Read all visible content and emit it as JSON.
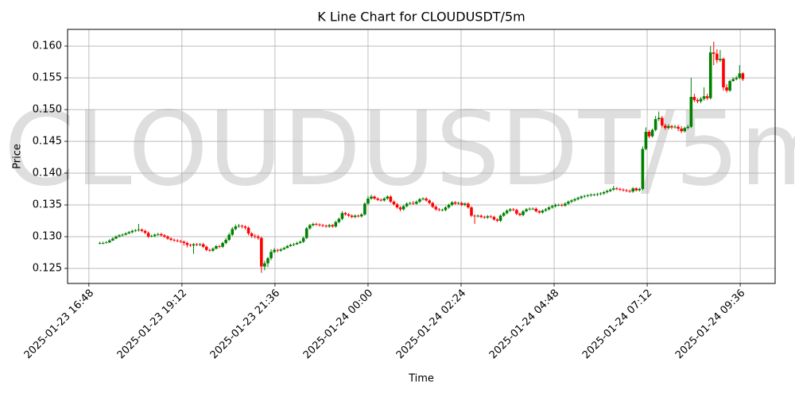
{
  "chart_data": {
    "type": "candlestick",
    "title": "K Line Chart for CLOUDUSDT/5m",
    "watermark": "CLOUDUSDT/5m",
    "x_label": "Time",
    "y_label": "Price",
    "up_color": "green",
    "down_color": "red",
    "grid": true,
    "xlim": [
      "2025-01-23 16:15",
      "2025-01-24 10:30"
    ],
    "xticks": [
      "2025-01-23 16:48",
      "2025-01-23 19:12",
      "2025-01-23 21:36",
      "2025-01-24 00:00",
      "2025-01-24 02:24",
      "2025-01-24 04:48",
      "2025-01-24 07:12",
      "2025-01-24 09:36"
    ],
    "ylim": [
      0.12263,
      0.16263
    ],
    "yticks": [
      0.125,
      {
        "value": 0.13,
        "label": "0.130"
      },
      0.135,
      {
        "value": 0.14,
        "label": "0.140"
      },
      0.145,
      {
        "value": 0.15,
        "label": "0.150"
      },
      0.155,
      {
        "value": 0.16,
        "label": "0.160"
      }
    ],
    "x": [
      "2025-01-23 17:05",
      "2025-01-23 17:10",
      "2025-01-23 17:15",
      "2025-01-23 17:20",
      "2025-01-23 17:25",
      "2025-01-23 17:30",
      "2025-01-23 17:35",
      "2025-01-23 17:40",
      "2025-01-23 17:45",
      "2025-01-23 17:50",
      "2025-01-23 17:55",
      "2025-01-23 18:00",
      "2025-01-23 18:05",
      "2025-01-23 18:10",
      "2025-01-23 18:15",
      "2025-01-23 18:20",
      "2025-01-23 18:25",
      "2025-01-23 18:30",
      "2025-01-23 18:35",
      "2025-01-23 18:40",
      "2025-01-23 18:45",
      "2025-01-23 18:50",
      "2025-01-23 18:55",
      "2025-01-23 19:00",
      "2025-01-23 19:05",
      "2025-01-23 19:10",
      "2025-01-23 19:15",
      "2025-01-23 19:20",
      "2025-01-23 19:25",
      "2025-01-23 19:30",
      "2025-01-23 19:35",
      "2025-01-23 19:40",
      "2025-01-23 19:45",
      "2025-01-23 19:50",
      "2025-01-23 19:55",
      "2025-01-23 20:00",
      "2025-01-23 20:05",
      "2025-01-23 20:10",
      "2025-01-23 20:15",
      "2025-01-23 20:20",
      "2025-01-23 20:25",
      "2025-01-23 20:30",
      "2025-01-23 20:35",
      "2025-01-23 20:40",
      "2025-01-23 20:45",
      "2025-01-23 20:50",
      "2025-01-23 20:55",
      "2025-01-23 21:00",
      "2025-01-23 21:05",
      "2025-01-23 21:10",
      "2025-01-23 21:15",
      "2025-01-23 21:20",
      "2025-01-23 21:25",
      "2025-01-23 21:30",
      "2025-01-23 21:35",
      "2025-01-23 21:40",
      "2025-01-23 21:45",
      "2025-01-23 21:50",
      "2025-01-23 21:55",
      "2025-01-23 22:00",
      "2025-01-23 22:05",
      "2025-01-23 22:10",
      "2025-01-23 22:15",
      "2025-01-23 22:20",
      "2025-01-23 22:25",
      "2025-01-23 22:30",
      "2025-01-23 22:35",
      "2025-01-23 22:40",
      "2025-01-23 22:45",
      "2025-01-23 22:50",
      "2025-01-23 22:55",
      "2025-01-23 23:00",
      "2025-01-23 23:05",
      "2025-01-23 23:10",
      "2025-01-23 23:15",
      "2025-01-23 23:20",
      "2025-01-23 23:25",
      "2025-01-23 23:30",
      "2025-01-23 23:35",
      "2025-01-23 23:40",
      "2025-01-23 23:45",
      "2025-01-23 23:50",
      "2025-01-23 23:55",
      "2025-01-24 00:00",
      "2025-01-24 00:05",
      "2025-01-24 00:10",
      "2025-01-24 00:15",
      "2025-01-24 00:20",
      "2025-01-24 00:25",
      "2025-01-24 00:30",
      "2025-01-24 00:35",
      "2025-01-24 00:40",
      "2025-01-24 00:45",
      "2025-01-24 00:50",
      "2025-01-24 00:55",
      "2025-01-24 01:00",
      "2025-01-24 01:05",
      "2025-01-24 01:10",
      "2025-01-24 01:15",
      "2025-01-24 01:20",
      "2025-01-24 01:25",
      "2025-01-24 01:30",
      "2025-01-24 01:35",
      "2025-01-24 01:40",
      "2025-01-24 01:45",
      "2025-01-24 01:50",
      "2025-01-24 01:55",
      "2025-01-24 02:00",
      "2025-01-24 02:05",
      "2025-01-24 02:10",
      "2025-01-24 02:15",
      "2025-01-24 02:20",
      "2025-01-24 02:25",
      "2025-01-24 02:30",
      "2025-01-24 02:35",
      "2025-01-24 02:40",
      "2025-01-24 02:45",
      "2025-01-24 02:50",
      "2025-01-24 02:55",
      "2025-01-24 03:00",
      "2025-01-24 03:05",
      "2025-01-24 03:10",
      "2025-01-24 03:15",
      "2025-01-24 03:20",
      "2025-01-24 03:25",
      "2025-01-24 03:30",
      "2025-01-24 03:35",
      "2025-01-24 03:40",
      "2025-01-24 03:45",
      "2025-01-24 03:50",
      "2025-01-24 03:55",
      "2025-01-24 04:00",
      "2025-01-24 04:05",
      "2025-01-24 04:10",
      "2025-01-24 04:15",
      "2025-01-24 04:20",
      "2025-01-24 04:25",
      "2025-01-24 04:30",
      "2025-01-24 04:35",
      "2025-01-24 04:40",
      "2025-01-24 04:45",
      "2025-01-24 04:50",
      "2025-01-24 04:55",
      "2025-01-24 05:00",
      "2025-01-24 05:05",
      "2025-01-24 05:10",
      "2025-01-24 05:15",
      "2025-01-24 05:20",
      "2025-01-24 05:25",
      "2025-01-24 05:30",
      "2025-01-24 05:35",
      "2025-01-24 05:40",
      "2025-01-24 05:45",
      "2025-01-24 05:50",
      "2025-01-24 05:55",
      "2025-01-24 06:00",
      "2025-01-24 06:05",
      "2025-01-24 06:10",
      "2025-01-24 06:15",
      "2025-01-24 06:20",
      "2025-01-24 06:25",
      "2025-01-24 06:30",
      "2025-01-24 06:35",
      "2025-01-24 06:40",
      "2025-01-24 06:45",
      "2025-01-24 06:50",
      "2025-01-24 06:55",
      "2025-01-24 07:00",
      "2025-01-24 07:05",
      "2025-01-24 07:10",
      "2025-01-24 07:15",
      "2025-01-24 07:20",
      "2025-01-24 07:25",
      "2025-01-24 07:30",
      "2025-01-24 07:35",
      "2025-01-24 07:40",
      "2025-01-24 07:45",
      "2025-01-24 07:50",
      "2025-01-24 07:55",
      "2025-01-24 08:00",
      "2025-01-24 08:05",
      "2025-01-24 08:10",
      "2025-01-24 08:15",
      "2025-01-24 08:20",
      "2025-01-24 08:25",
      "2025-01-24 08:30",
      "2025-01-24 08:35",
      "2025-01-24 08:40",
      "2025-01-24 08:45",
      "2025-01-24 08:50",
      "2025-01-24 08:55",
      "2025-01-24 09:00",
      "2025-01-24 09:05",
      "2025-01-24 09:10",
      "2025-01-24 09:15",
      "2025-01-24 09:20",
      "2025-01-24 09:25",
      "2025-01-24 09:30",
      "2025-01-24 09:35",
      "2025-01-24 09:40"
    ],
    "open": [
      0.1289,
      0.129,
      0.129,
      0.1291,
      0.1294,
      0.1297,
      0.13,
      0.1302,
      0.1303,
      0.1305,
      0.1307,
      0.1309,
      0.131,
      0.1311,
      0.1309,
      0.1306,
      0.13,
      0.1301,
      0.1303,
      0.1304,
      0.1302,
      0.13,
      0.1297,
      0.1295,
      0.1294,
      0.1293,
      0.1292,
      0.129,
      0.1287,
      0.1286,
      0.1288,
      0.1287,
      0.1288,
      0.1284,
      0.1279,
      0.1278,
      0.1281,
      0.1285,
      0.1284,
      0.129,
      0.1295,
      0.1303,
      0.1312,
      0.1316,
      0.1317,
      0.1316,
      0.1314,
      0.1305,
      0.1301,
      0.13,
      0.1298,
      0.1253,
      0.1258,
      0.1266,
      0.1276,
      0.1279,
      0.1278,
      0.128,
      0.1282,
      0.1285,
      0.1287,
      0.1288,
      0.129,
      0.1292,
      0.1298,
      0.1313,
      0.1318,
      0.132,
      0.1319,
      0.1318,
      0.1317,
      0.1316,
      0.1318,
      0.1316,
      0.1323,
      0.1328,
      0.1337,
      0.1335,
      0.1333,
      0.1331,
      0.1333,
      0.1332,
      0.1335,
      0.1352,
      0.136,
      0.1363,
      0.136,
      0.1358,
      0.1357,
      0.136,
      0.1363,
      0.1355,
      0.1351,
      0.1346,
      0.1343,
      0.1348,
      0.1352,
      0.1353,
      0.1352,
      0.1355,
      0.1359,
      0.136,
      0.1357,
      0.1353,
      0.1347,
      0.1343,
      0.1342,
      0.1342,
      0.1346,
      0.135,
      0.1354,
      0.1352,
      0.1353,
      0.135,
      0.1352,
      0.1346,
      0.1333,
      0.1332,
      0.1333,
      0.1331,
      0.133,
      0.1332,
      0.1331,
      0.1327,
      0.1325,
      0.1333,
      0.1337,
      0.1341,
      0.1343,
      0.1342,
      0.1336,
      0.1334,
      0.134,
      0.1343,
      0.1344,
      0.1344,
      0.134,
      0.1338,
      0.1341,
      0.1343,
      0.1346,
      0.1348,
      0.135,
      0.135,
      0.1349,
      0.1352,
      0.1355,
      0.1357,
      0.1359,
      0.1361,
      0.1363,
      0.1364,
      0.1365,
      0.1366,
      0.1366,
      0.1367,
      0.1368,
      0.137,
      0.1372,
      0.1374,
      0.1376,
      0.1375,
      0.1374,
      0.1373,
      0.1372,
      0.1371,
      0.1376,
      0.1373,
      0.1375,
      0.1438,
      0.1465,
      0.1458,
      0.1468,
      0.1485,
      0.1487,
      0.1475,
      0.1471,
      0.1474,
      0.1472,
      0.1473,
      0.147,
      0.1466,
      0.1471,
      0.1473,
      0.152,
      0.1515,
      0.1513,
      0.1517,
      0.1521,
      0.1518,
      0.159,
      0.1588,
      0.1578,
      0.158,
      0.1535,
      0.153,
      0.1545,
      0.1548,
      0.155,
      0.1557
    ],
    "high": [
      0.1292,
      0.1292,
      0.1293,
      0.1296,
      0.1299,
      0.1302,
      0.1304,
      0.1305,
      0.1307,
      0.1309,
      0.1311,
      0.1312,
      0.132,
      0.1313,
      0.1311,
      0.1308,
      0.1303,
      0.1305,
      0.1306,
      0.1306,
      0.1304,
      0.1302,
      0.1299,
      0.1297,
      0.1296,
      0.1295,
      0.1294,
      0.1292,
      0.1289,
      0.129,
      0.129,
      0.129,
      0.129,
      0.1286,
      0.1281,
      0.1283,
      0.1287,
      0.1287,
      0.1292,
      0.1298,
      0.1306,
      0.1315,
      0.1319,
      0.132,
      0.1319,
      0.1318,
      0.1316,
      0.1307,
      0.1304,
      0.1303,
      0.13,
      0.1262,
      0.1268,
      0.128,
      0.1282,
      0.1281,
      0.1282,
      0.1284,
      0.1287,
      0.1289,
      0.129,
      0.1292,
      0.1294,
      0.13,
      0.1315,
      0.132,
      0.1322,
      0.1322,
      0.1321,
      0.132,
      0.1319,
      0.132,
      0.132,
      0.1325,
      0.133,
      0.134,
      0.1339,
      0.1337,
      0.1335,
      0.1335,
      0.1335,
      0.1337,
      0.1354,
      0.1364,
      0.1366,
      0.1365,
      0.1362,
      0.136,
      0.1362,
      0.1365,
      0.1365,
      0.1357,
      0.1353,
      0.1348,
      0.135,
      0.1354,
      0.1355,
      0.1356,
      0.1357,
      0.1361,
      0.1362,
      0.1362,
      0.1359,
      0.1355,
      0.1349,
      0.1345,
      0.1344,
      0.1348,
      0.1352,
      0.1356,
      0.1356,
      0.1355,
      0.1355,
      0.1354,
      0.1354,
      0.1348,
      0.1335,
      0.1335,
      0.1335,
      0.1333,
      0.1334,
      0.1334,
      0.1333,
      0.1329,
      0.1335,
      0.1339,
      0.1343,
      0.1345,
      0.1345,
      0.1344,
      0.1338,
      0.1342,
      0.1345,
      0.1346,
      0.1346,
      0.1346,
      0.1342,
      0.1343,
      0.1345,
      0.1348,
      0.135,
      0.1352,
      0.1352,
      0.1352,
      0.1354,
      0.1357,
      0.1359,
      0.1361,
      0.1363,
      0.1365,
      0.1366,
      0.1367,
      0.1368,
      0.1368,
      0.1369,
      0.137,
      0.1372,
      0.1374,
      0.1376,
      0.138,
      0.1378,
      0.1377,
      0.1376,
      0.1375,
      0.1374,
      0.1378,
      0.1378,
      0.1377,
      0.1442,
      0.1472,
      0.1468,
      0.147,
      0.149,
      0.1497,
      0.149,
      0.1478,
      0.1477,
      0.1476,
      0.1476,
      0.1476,
      0.1474,
      0.1473,
      0.1476,
      0.155,
      0.1525,
      0.1518,
      0.152,
      0.1535,
      0.1525,
      0.16,
      0.1607,
      0.1595,
      0.1594,
      0.1582,
      0.154,
      0.1547,
      0.1551,
      0.1553,
      0.157,
      0.1559
    ],
    "low": [
      0.1288,
      0.1288,
      0.1289,
      0.129,
      0.1293,
      0.1296,
      0.1299,
      0.13,
      0.1302,
      0.1304,
      0.1305,
      0.1307,
      0.1308,
      0.1307,
      0.1304,
      0.1298,
      0.1299,
      0.1299,
      0.1301,
      0.13,
      0.1298,
      0.1295,
      0.1293,
      0.1292,
      0.1291,
      0.129,
      0.1286,
      0.1283,
      0.1284,
      0.1273,
      0.1285,
      0.1285,
      0.1282,
      0.1277,
      0.1276,
      0.1276,
      0.128,
      0.1282,
      0.1282,
      0.1288,
      0.1293,
      0.1301,
      0.131,
      0.1314,
      0.1313,
      0.1311,
      0.1302,
      0.1298,
      0.1297,
      0.1295,
      0.1243,
      0.1247,
      0.1252,
      0.1263,
      0.1274,
      0.1275,
      0.1276,
      0.1279,
      0.1282,
      0.1284,
      0.1285,
      0.1287,
      0.1289,
      0.129,
      0.1296,
      0.1311,
      0.1316,
      0.1317,
      0.1316,
      0.1315,
      0.1314,
      0.1314,
      0.1314,
      0.1314,
      0.1321,
      0.1326,
      0.1333,
      0.1331,
      0.1329,
      0.1329,
      0.133,
      0.133,
      0.1333,
      0.135,
      0.1358,
      0.1358,
      0.1356,
      0.1355,
      0.1355,
      0.1358,
      0.1353,
      0.1349,
      0.1344,
      0.134,
      0.1341,
      0.1346,
      0.135,
      0.135,
      0.135,
      0.1353,
      0.1357,
      0.1355,
      0.1351,
      0.1345,
      0.1341,
      0.134,
      0.134,
      0.134,
      0.1344,
      0.1348,
      0.135,
      0.135,
      0.1348,
      0.1348,
      0.1344,
      0.1331,
      0.132,
      0.133,
      0.1329,
      0.1328,
      0.1328,
      0.1329,
      0.1325,
      0.1323,
      0.1323,
      0.1331,
      0.1335,
      0.1339,
      0.134,
      0.1334,
      0.1332,
      0.1332,
      0.1338,
      0.1341,
      0.1342,
      0.1338,
      0.1336,
      0.1336,
      0.1339,
      0.1341,
      0.1344,
      0.1346,
      0.1348,
      0.1347,
      0.1347,
      0.135,
      0.1353,
      0.1355,
      0.1357,
      0.1359,
      0.1361,
      0.1362,
      0.1363,
      0.1364,
      0.1364,
      0.1365,
      0.1366,
      0.1368,
      0.137,
      0.1372,
      0.1373,
      0.1372,
      0.1371,
      0.137,
      0.1369,
      0.1369,
      0.1371,
      0.1371,
      0.1373,
      0.1436,
      0.1455,
      0.1456,
      0.1466,
      0.1482,
      0.1472,
      0.1468,
      0.1469,
      0.1469,
      0.147,
      0.1466,
      0.1463,
      0.1464,
      0.1469,
      0.1471,
      0.1512,
      0.151,
      0.151,
      0.1514,
      0.1515,
      0.1516,
      0.157,
      0.1573,
      0.1575,
      0.153,
      0.1527,
      0.1528,
      0.1544,
      0.1546,
      0.1548,
      0.1545
    ],
    "close": [
      0.129,
      0.129,
      0.1291,
      0.1294,
      0.1297,
      0.13,
      0.1302,
      0.1303,
      0.1305,
      0.1307,
      0.1309,
      0.131,
      0.1311,
      0.1309,
      0.1306,
      0.13,
      0.1301,
      0.1303,
      0.1304,
      0.1302,
      0.13,
      0.1297,
      0.1295,
      0.1294,
      0.1293,
      0.1292,
      0.129,
      0.1287,
      0.1286,
      0.1288,
      0.1287,
      0.1288,
      0.1284,
      0.1279,
      0.1278,
      0.1281,
      0.1285,
      0.1284,
      0.129,
      0.1295,
      0.1303,
      0.1312,
      0.1316,
      0.1317,
      0.1316,
      0.1314,
      0.1305,
      0.1301,
      0.13,
      0.1298,
      0.1253,
      0.1258,
      0.1266,
      0.1276,
      0.1279,
      0.1278,
      0.128,
      0.1282,
      0.1285,
      0.1287,
      0.1288,
      0.129,
      0.1292,
      0.1298,
      0.1313,
      0.1318,
      0.132,
      0.1319,
      0.1318,
      0.1317,
      0.1316,
      0.1318,
      0.1316,
      0.1323,
      0.1328,
      0.1337,
      0.1335,
      0.1333,
      0.1331,
      0.1333,
      0.1332,
      0.1335,
      0.1352,
      0.136,
      0.1363,
      0.136,
      0.1358,
      0.1357,
      0.136,
      0.1363,
      0.1355,
      0.1351,
      0.1346,
      0.1343,
      0.1348,
      0.1352,
      0.1353,
      0.1352,
      0.1355,
      0.1359,
      0.136,
      0.1357,
      0.1353,
      0.1347,
      0.1343,
      0.1342,
      0.1342,
      0.1346,
      0.135,
      0.1354,
      0.1352,
      0.1353,
      0.135,
      0.1352,
      0.1346,
      0.1333,
      0.1332,
      0.1333,
      0.1331,
      0.133,
      0.1332,
      0.1331,
      0.1327,
      0.1325,
      0.1333,
      0.1337,
      0.1341,
      0.1343,
      0.1342,
      0.1336,
      0.1334,
      0.134,
      0.1343,
      0.1344,
      0.1344,
      0.134,
      0.1338,
      0.1341,
      0.1343,
      0.1346,
      0.1348,
      0.135,
      0.135,
      0.1349,
      0.1352,
      0.1355,
      0.1357,
      0.1359,
      0.1361,
      0.1363,
      0.1364,
      0.1365,
      0.1366,
      0.1366,
      0.1367,
      0.1368,
      0.137,
      0.1372,
      0.1374,
      0.1376,
      0.1375,
      0.1374,
      0.1373,
      0.1372,
      0.1371,
      0.1376,
      0.1373,
      0.1375,
      0.1438,
      0.1465,
      0.1458,
      0.1468,
      0.1485,
      0.1487,
      0.1475,
      0.1471,
      0.1474,
      0.1472,
      0.1473,
      0.147,
      0.1466,
      0.1471,
      0.1473,
      0.152,
      0.1515,
      0.1513,
      0.1517,
      0.1521,
      0.1518,
      0.159,
      0.1588,
      0.1578,
      0.158,
      0.1535,
      0.153,
      0.1545,
      0.1548,
      0.155,
      0.1557,
      0.1548
    ]
  }
}
